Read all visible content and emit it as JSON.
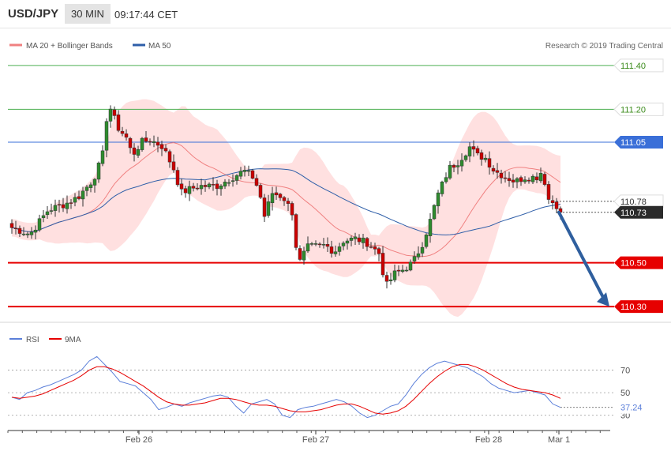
{
  "header": {
    "symbol": "USD/JPY",
    "timeframe": "30 MIN",
    "time": "09:17:44 CET"
  },
  "legend": {
    "items": [
      {
        "label": "MA 20 + Bollinger Bands",
        "color": "#f08080"
      },
      {
        "label": "MA 50",
        "color": "#2e5ea8"
      }
    ],
    "credit": "Research © 2019 Trading Central"
  },
  "colors": {
    "bull": "#2e8b2e",
    "bear": "#cc0000",
    "band": "#ffe0e0",
    "ma20": "#f08080",
    "ma50": "#2e5ea8",
    "target": "#4caf50",
    "support": "#e60000",
    "pivot": "#3a6fd8",
    "arrow": "#2f5f9e",
    "rsi": "#5b7fd9",
    "rsi_ma": "#e60000"
  },
  "chart_data": [
    {
      "type": "candlestick",
      "x_labels": [
        "Feb 26",
        "Feb 27",
        "Feb 28",
        "Mar 1"
      ],
      "ylim": [
        110.25,
        111.45
      ],
      "levels": [
        {
          "value": 111.4,
          "label": "111.40",
          "role": "target"
        },
        {
          "value": 111.2,
          "label": "111.20",
          "role": "target"
        },
        {
          "value": 111.05,
          "label": "111.05",
          "role": "pivot"
        },
        {
          "value": 110.78,
          "label": "110.78",
          "role": "last_high"
        },
        {
          "value": 110.73,
          "label": "110.73",
          "role": "last_price"
        },
        {
          "value": 110.5,
          "label": "110.50",
          "role": "support"
        },
        {
          "value": 110.3,
          "label": "110.30",
          "role": "support"
        }
      ],
      "arrow": {
        "from": 110.73,
        "to": 110.3,
        "direction": "down"
      },
      "close_path": [
        [
          0,
          110.66
        ],
        [
          6,
          110.63
        ],
        [
          12,
          110.74
        ],
        [
          18,
          110.77
        ],
        [
          22,
          110.8
        ],
        [
          27,
          110.88
        ],
        [
          30,
          110.98
        ],
        [
          32,
          111.23
        ],
        [
          35,
          111.12
        ],
        [
          38,
          111.07
        ],
        [
          40,
          110.99
        ],
        [
          43,
          111.05
        ],
        [
          46,
          111.06
        ],
        [
          50,
          111.03
        ],
        [
          54,
          110.92
        ],
        [
          56,
          110.82
        ],
        [
          62,
          110.85
        ],
        [
          68,
          110.85
        ],
        [
          72,
          110.88
        ],
        [
          77,
          110.92
        ],
        [
          80,
          110.89
        ],
        [
          82,
          110.83
        ],
        [
          84,
          110.7
        ],
        [
          86,
          110.82
        ],
        [
          90,
          110.8
        ],
        [
          93,
          110.73
        ],
        [
          95,
          110.49
        ],
        [
          98,
          110.57
        ],
        [
          104,
          110.58
        ],
        [
          107,
          110.55
        ],
        [
          110,
          110.6
        ],
        [
          114,
          110.61
        ],
        [
          118,
          110.59
        ],
        [
          122,
          110.54
        ],
        [
          124,
          110.39
        ],
        [
          127,
          110.45
        ],
        [
          130,
          110.47
        ],
        [
          133,
          110.5
        ],
        [
          136,
          110.58
        ],
        [
          139,
          110.7
        ],
        [
          141,
          110.8
        ],
        [
          145,
          110.93
        ],
        [
          148,
          110.96
        ],
        [
          152,
          111.03
        ],
        [
          154,
          110.99
        ],
        [
          157,
          110.98
        ],
        [
          160,
          110.92
        ],
        [
          164,
          110.89
        ],
        [
          167,
          110.87
        ],
        [
          170,
          110.89
        ],
        [
          174,
          110.89
        ],
        [
          176,
          110.92
        ],
        [
          178,
          110.79
        ],
        [
          181,
          110.76
        ],
        [
          182,
          110.75
        ]
      ]
    },
    {
      "type": "line",
      "name": "RSI",
      "yticks": [
        30,
        50,
        70
      ],
      "ylim": [
        20,
        90
      ],
      "last_value": "37.24",
      "series": [
        {
          "name": "RSI",
          "values": [
            46,
            44,
            50,
            52,
            55,
            57,
            60,
            63,
            66,
            70,
            78,
            82,
            75,
            68,
            60,
            58,
            56,
            50,
            44,
            35,
            37,
            40,
            38,
            41,
            43,
            45,
            47,
            48,
            46,
            38,
            32,
            40,
            42,
            44,
            40,
            30,
            28,
            35,
            37,
            38,
            40,
            42,
            44,
            42,
            38,
            32,
            28,
            30,
            34,
            38,
            40,
            48,
            58,
            66,
            72,
            76,
            78,
            76,
            74,
            72,
            68,
            64,
            58,
            54,
            52,
            50,
            51,
            52,
            50,
            48,
            40,
            37
          ]
        },
        {
          "name": "9MA",
          "values": [
            46,
            45,
            46,
            47,
            49,
            52,
            55,
            58,
            61,
            65,
            70,
            73,
            73,
            71,
            68,
            64,
            60,
            56,
            51,
            46,
            42,
            40,
            39,
            39,
            40,
            41,
            43,
            45,
            45,
            44,
            42,
            40,
            39,
            39,
            38,
            36,
            34,
            33,
            33,
            34,
            35,
            37,
            39,
            40,
            40,
            38,
            35,
            32,
            31,
            32,
            34,
            38,
            44,
            51,
            58,
            64,
            69,
            73,
            75,
            75,
            73,
            70,
            66,
            62,
            58,
            55,
            53,
            52,
            51,
            50,
            48,
            45
          ]
        }
      ]
    }
  ]
}
